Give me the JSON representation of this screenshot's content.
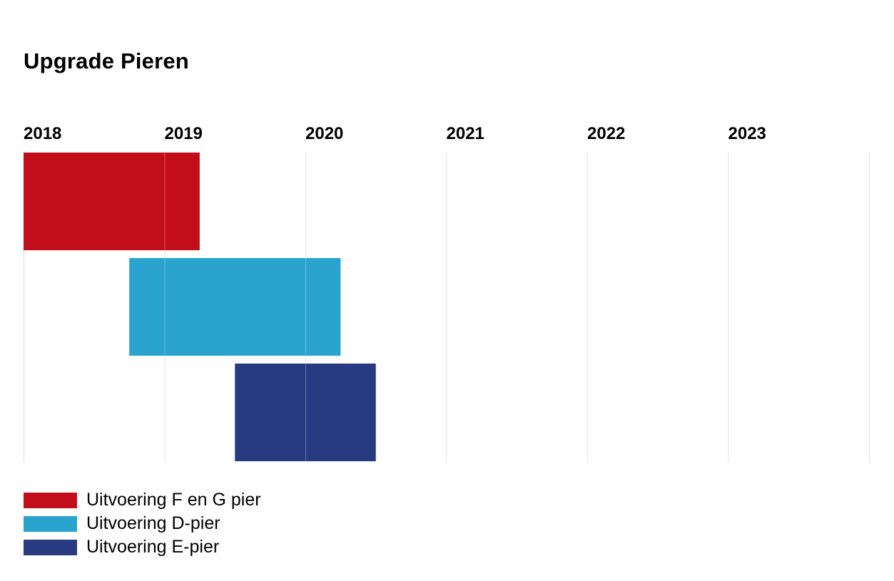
{
  "chart_data": {
    "type": "gantt",
    "title": "Upgrade Pieren",
    "x_ticks": [
      "2018",
      "2019",
      "2020",
      "2021",
      "2022",
      "2023"
    ],
    "xlim": [
      2018,
      2024
    ],
    "grid": true,
    "legend_position": "bottom-left",
    "series": [
      {
        "name": "Uitvoering F en G pier",
        "start": 2018.0,
        "end": 2019.25,
        "color": "#c20e1a"
      },
      {
        "name": "Uitvoering D-pier",
        "start": 2018.75,
        "end": 2020.25,
        "color": "#2aa4cf"
      },
      {
        "name": "Uitvoering E-pier",
        "start": 2019.5,
        "end": 2020.5,
        "color": "#283b80"
      }
    ]
  }
}
